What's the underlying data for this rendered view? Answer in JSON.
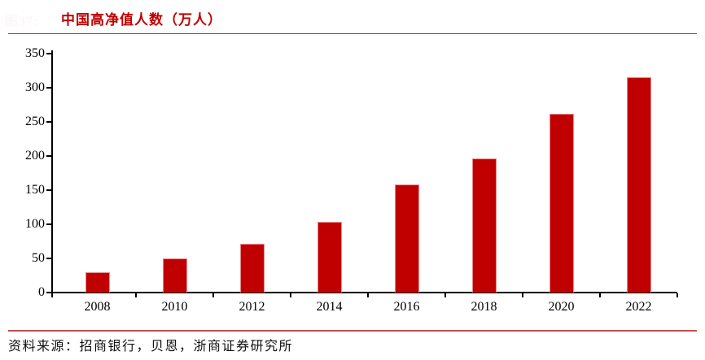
{
  "figure": {
    "watermark": "图37:",
    "title": "中国高净值人数（万人）",
    "source": "资料来源：招商银行，贝恩，浙商证券研究所"
  },
  "colors": {
    "bar": "#C00000",
    "title": "#C00000",
    "top_rule": "#A52A2A",
    "bottom_rule": "#C0504D",
    "axis": "#000000"
  },
  "chart_data": {
    "type": "bar",
    "title": "中国高净值人数（万人）",
    "categories": [
      "2008",
      "2010",
      "2012",
      "2014",
      "2016",
      "2018",
      "2020",
      "2022"
    ],
    "values": [
      30,
      50,
      71,
      104,
      158,
      197,
      262,
      316
    ],
    "xlabel": "",
    "ylabel": "",
    "ylim": [
      0,
      350
    ],
    "ytick_step": 50,
    "yticks": [
      0,
      50,
      100,
      150,
      200,
      250,
      300,
      350
    ],
    "grid": false,
    "legend": "none",
    "bar_color": "#C00000"
  }
}
